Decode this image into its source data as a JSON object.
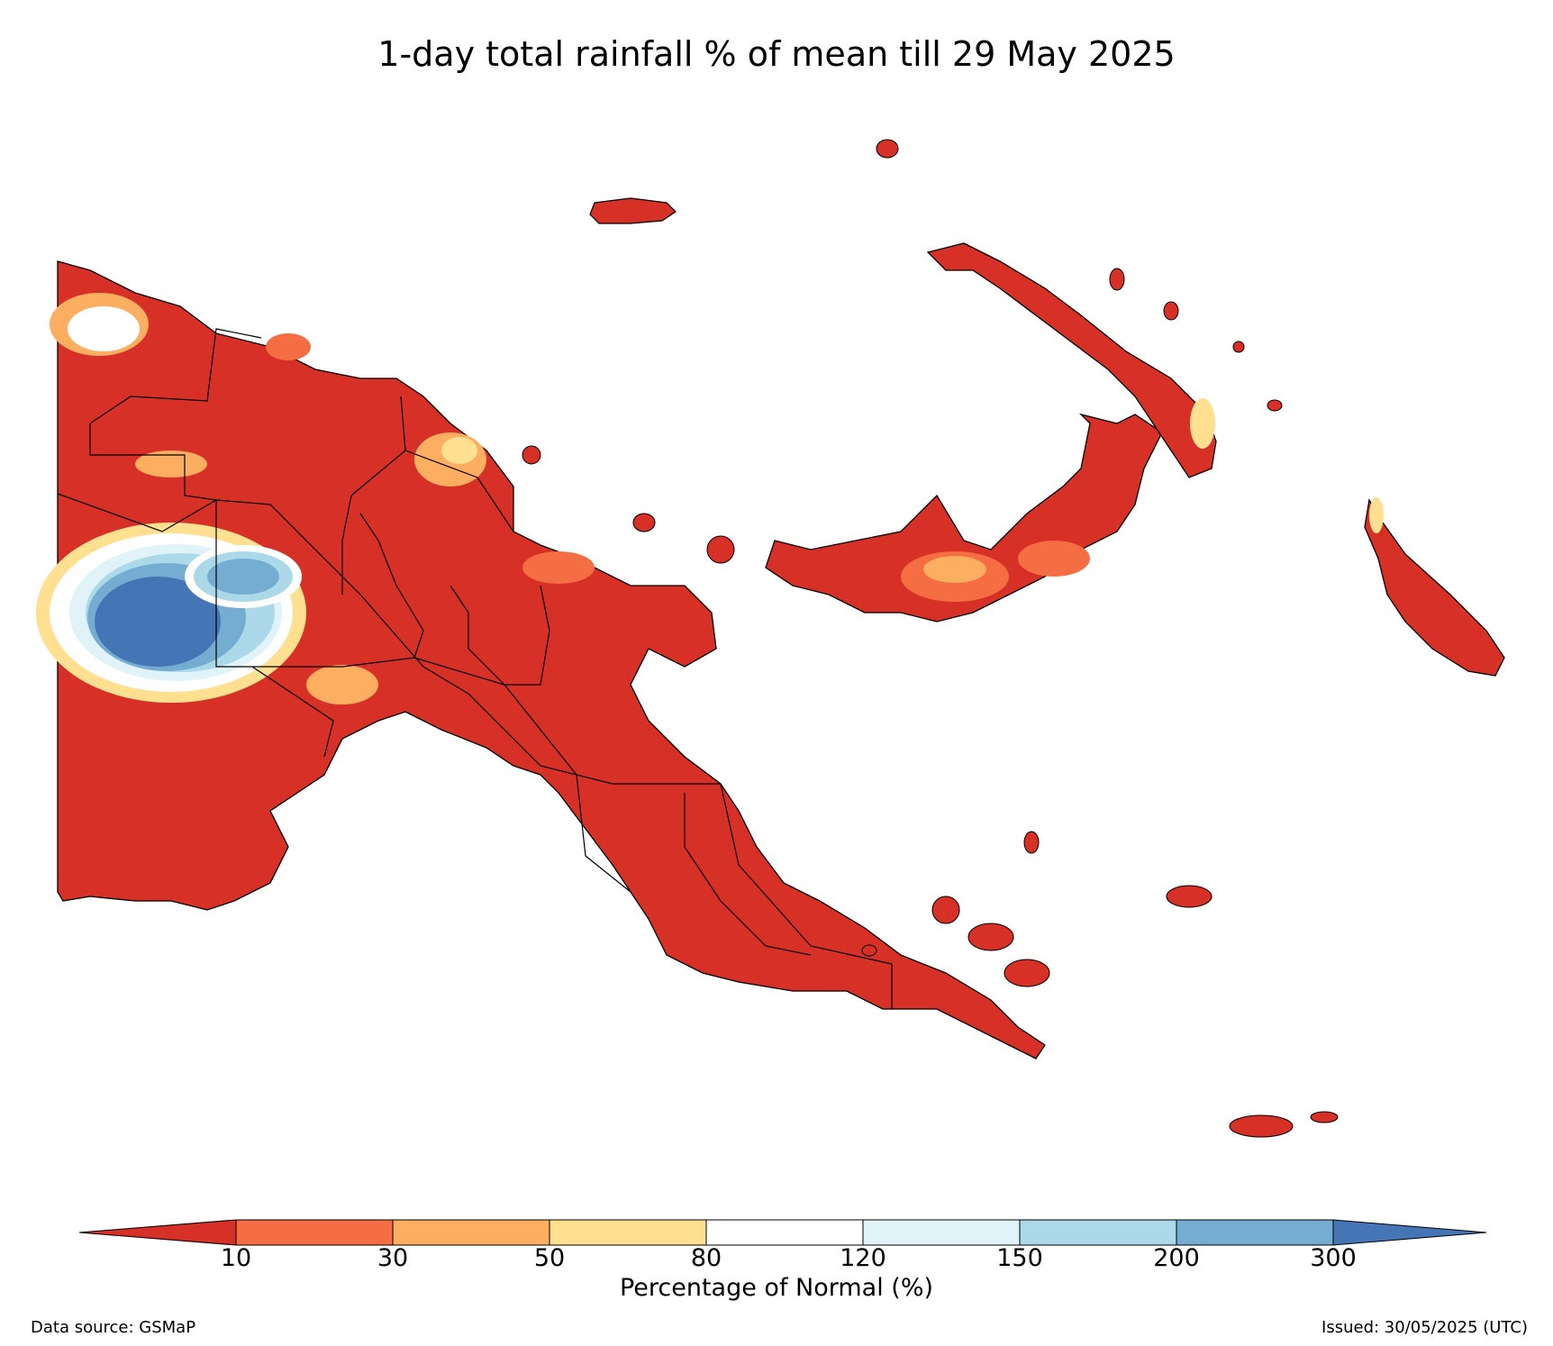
{
  "title": "1-day total rainfall % of mean till 29 May 2025",
  "legend": {
    "title": "Percentage of Normal (%)",
    "ticks": [
      "10",
      "30",
      "50",
      "80",
      "120",
      "150",
      "200",
      "300"
    ],
    "colors": {
      "lt10": "#d73027",
      "10-30": "#f46d43",
      "30-50": "#fdae61",
      "50-80": "#fee090",
      "80-120": "#ffffff",
      "120-150": "#e0f3f8",
      "150-200": "#abd9e9",
      "200-300": "#74add1",
      "gt300": "#4575b4"
    }
  },
  "footer": {
    "source": "Data source: GSMaP",
    "issued": "Issued: 30/05/2025 (UTC)"
  }
}
